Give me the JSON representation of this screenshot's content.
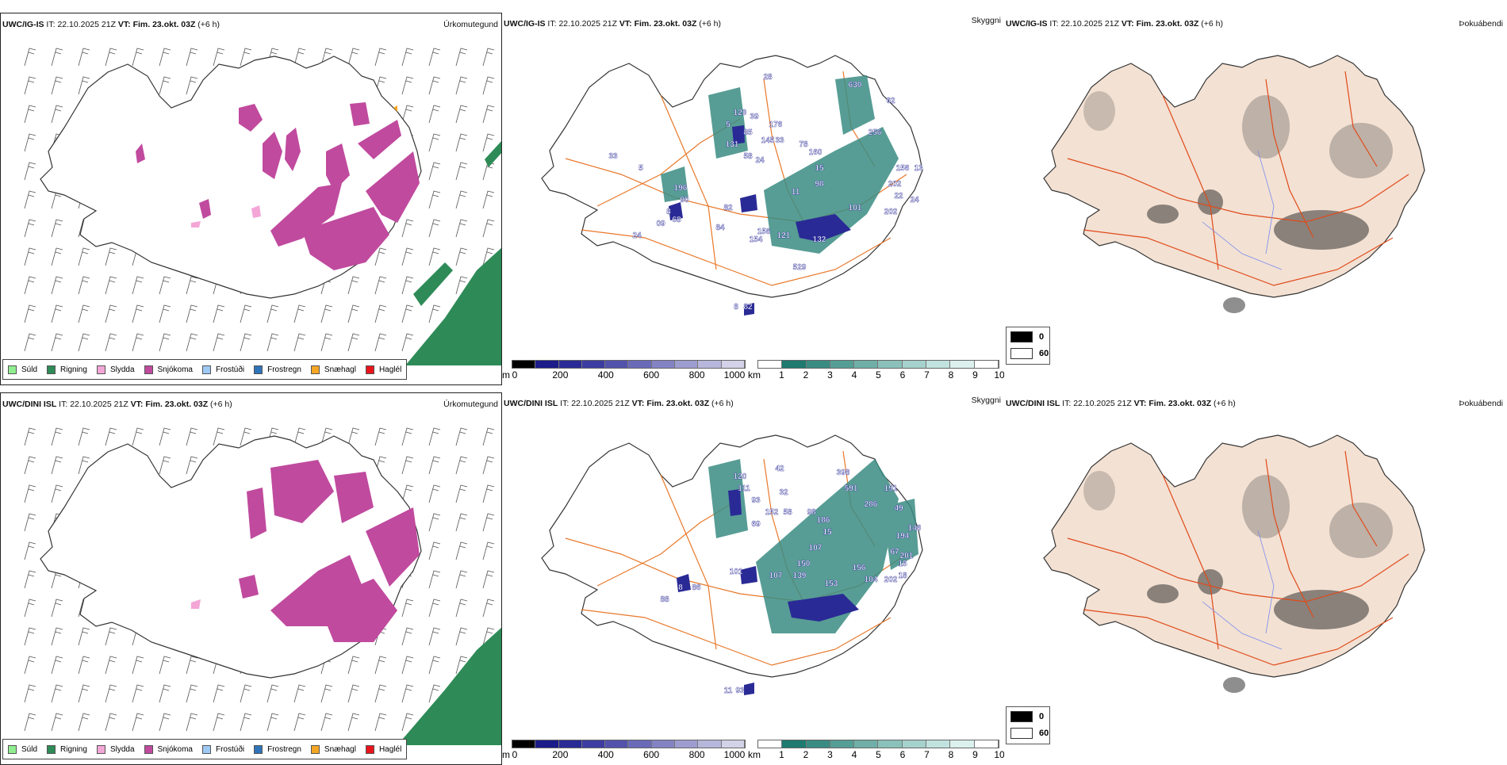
{
  "rows": [
    {
      "model": "UWC/IG-IS",
      "it_label": "IT:",
      "it_value": "22.10.2025 21Z",
      "vt_label": "VT:",
      "vt_value": "Fim. 23.okt. 03Z",
      "lead": "(+6 h)",
      "panels": {
        "precip": "Úrkomutegund",
        "cloud": "Skyggni",
        "fog": "Þokuábendi"
      },
      "snow_depth_labels": [
        "123",
        "39",
        "5",
        "85",
        "131",
        "58",
        "145",
        "33",
        "176",
        "24",
        "28",
        "78",
        "160",
        "15",
        "98",
        "11",
        "630",
        "62",
        "256",
        "156",
        "13",
        "202",
        "22",
        "24",
        "101",
        "202",
        "196",
        "90",
        "82",
        "84",
        "156",
        "154",
        "121",
        "132",
        "529",
        "68",
        "8",
        "09",
        "33",
        "5",
        "24",
        "82",
        "8"
      ]
    },
    {
      "model": "UWC/DINI ISL",
      "it_label": "IT:",
      "it_value": "22.10.2025 21Z",
      "vt_label": "VT:",
      "vt_value": "Fim. 23.okt. 03Z",
      "lead": "(+6 h)",
      "panels": {
        "precip": "Úrkomutegund",
        "cloud": "Skyggni",
        "fog": "Þokuábendi"
      },
      "snow_depth_labels": [
        "120",
        "111",
        "93",
        "69",
        "42",
        "32",
        "152",
        "58",
        "98",
        "186",
        "15",
        "107",
        "398",
        "591",
        "191",
        "286",
        "49",
        "146",
        "194",
        "67",
        "201",
        "15",
        "150",
        "156",
        "107",
        "139",
        "153",
        "104",
        "202",
        "18",
        "101",
        "86",
        "8",
        "88",
        "93",
        "11"
      ]
    }
  ],
  "precip_legend": [
    {
      "label": "Súld",
      "color": "#90ee90"
    },
    {
      "label": "Rigning",
      "color": "#2e8b57"
    },
    {
      "label": "Slydda",
      "color": "#f4a6d7"
    },
    {
      "label": "Snjókoma",
      "color": "#c04a9e"
    },
    {
      "label": "Frostúði",
      "color": "#9ec9f5"
    },
    {
      "label": "Frostregn",
      "color": "#2f73b8"
    },
    {
      "label": "Snæhagl",
      "color": "#f5a623"
    },
    {
      "label": "Haglél",
      "color": "#e8141c"
    }
  ],
  "height_colorbar": {
    "unit": "m",
    "ticks": [
      "0",
      "200",
      "400",
      "600",
      "800",
      "1000"
    ],
    "colors": [
      "#000000",
      "#1b1b8a",
      "#2a2a96",
      "#3c3ca2",
      "#5252ad",
      "#6a6ab8",
      "#8383c4",
      "#9d9dcf",
      "#b7b7db",
      "#d2d2e8"
    ]
  },
  "visibility_colorbar": {
    "unit": "km",
    "ticks": [
      "1",
      "2",
      "3",
      "4",
      "5",
      "6",
      "7",
      "8",
      "9",
      "10"
    ],
    "colors": [
      "#ffffff",
      "#1f7a70",
      "#3a8c83",
      "#559e96",
      "#70afa8",
      "#8bc1ba",
      "#a6d2cd",
      "#c1e3df",
      "#dcf1ee",
      "#ffffff"
    ]
  },
  "fog_legend": [
    {
      "label": "0",
      "color": "#000000"
    },
    {
      "label": "60",
      "color": "#ffffff"
    }
  ],
  "colors": {
    "snow": "#c04a9e",
    "rain": "#2e8b57",
    "roads": "#e8782a",
    "land_fog": "#f3e1d3",
    "snow_depth_dark": "#2a2a96",
    "visibility": "#3a8c83"
  }
}
